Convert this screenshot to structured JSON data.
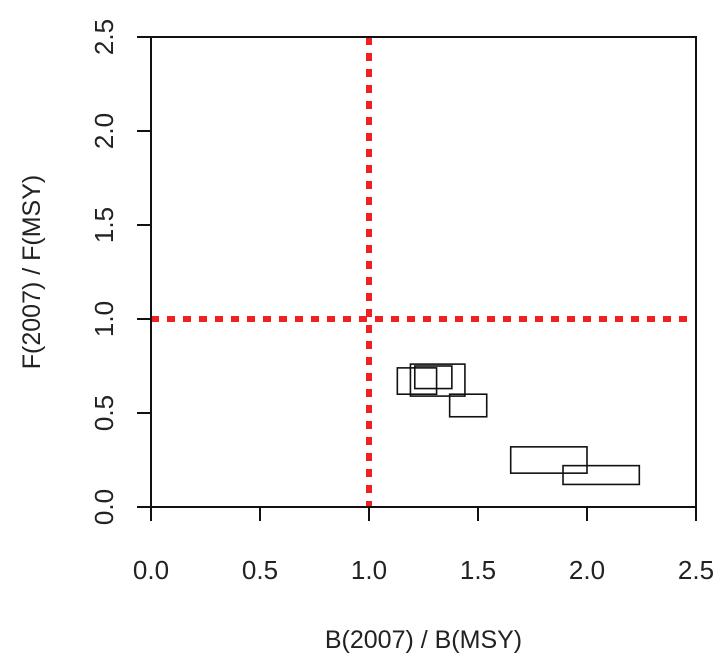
{
  "chart_data": {
    "type": "scatter",
    "mark": "rectangle",
    "xlabel": "B(2007) / B(MSY)",
    "ylabel": "F(2007) / F(MSY)",
    "xlim": [
      0.0,
      2.5
    ],
    "ylim": [
      0.0,
      2.5
    ],
    "xticks": [
      "0.0",
      "0.5",
      "1.0",
      "1.5",
      "2.0",
      "2.5"
    ],
    "yticks": [
      "0.0",
      "0.5",
      "1.0",
      "1.5",
      "2.0",
      "2.5"
    ],
    "reference_lines": [
      {
        "axis": "x",
        "value": 1.0,
        "style": "dotted",
        "color": "#ee2222"
      },
      {
        "axis": "y",
        "value": 1.0,
        "style": "dotted",
        "color": "#ee2222"
      }
    ],
    "boxes": [
      {
        "x_min": 1.13,
        "x_max": 1.31,
        "y_min": 0.6,
        "y_max": 0.74
      },
      {
        "x_min": 1.21,
        "x_max": 1.38,
        "y_min": 0.63,
        "y_max": 0.75
      },
      {
        "x_min": 1.19,
        "x_max": 1.44,
        "y_min": 0.59,
        "y_max": 0.76
      },
      {
        "x_min": 1.37,
        "x_max": 1.54,
        "y_min": 0.48,
        "y_max": 0.6
      },
      {
        "x_min": 1.65,
        "x_max": 2.0,
        "y_min": 0.18,
        "y_max": 0.32
      },
      {
        "x_min": 1.89,
        "x_max": 2.24,
        "y_min": 0.12,
        "y_max": 0.22
      }
    ],
    "grid": false,
    "legend": "none"
  }
}
